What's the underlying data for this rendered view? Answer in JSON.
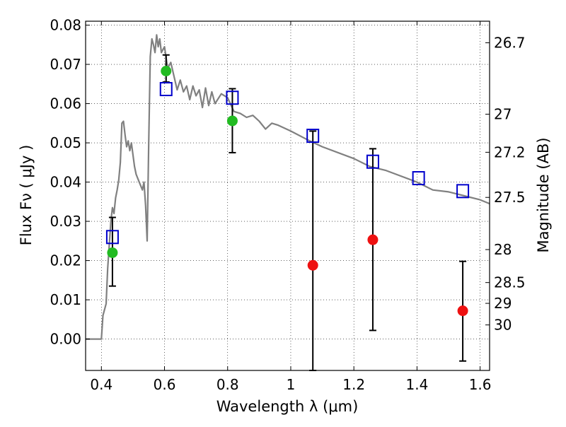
{
  "chart_data": {
    "type": "scatter",
    "xlabel": "Wavelength  λ (μm)",
    "ylabel": "Flux  Fν  ( μJy )",
    "ylabel_right": "Magnitude (AB)",
    "xlim": [
      0.35,
      1.63
    ],
    "ylim": [
      -0.008,
      0.081
    ],
    "xticks": [
      0.4,
      0.6,
      0.8,
      1.0,
      1.2,
      1.4,
      1.6
    ],
    "xtick_labels": [
      "0.4",
      "0.6",
      "0.8",
      "1",
      "1.2",
      "1.4",
      "1.6"
    ],
    "yticks": [
      0.0,
      0.01,
      0.02,
      0.03,
      0.04,
      0.05,
      0.06,
      0.07,
      0.08
    ],
    "ytick_labels": [
      "0.00",
      "0.01",
      "0.02",
      "0.03",
      "0.04",
      "0.05",
      "0.06",
      "0.07",
      "0.08"
    ],
    "right_ticks": [
      {
        "label": "26.7",
        "flux": 0.0755
      },
      {
        "label": "27",
        "flux": 0.0573
      },
      {
        "label": "27.2",
        "flux": 0.0476
      },
      {
        "label": "27.5",
        "flux": 0.0361
      },
      {
        "label": "28",
        "flux": 0.0228
      },
      {
        "label": "28.5",
        "flux": 0.0144
      },
      {
        "label": "29",
        "flux": 0.0091
      },
      {
        "label": "30",
        "flux": 0.0036
      }
    ],
    "grid": true,
    "colors": {
      "model": "#808080",
      "detection": "#22bb22",
      "upper_limit": "#ee1111",
      "model_box": "#0000cc",
      "errorbar": "#000000"
    },
    "series": [
      {
        "kind": "model_spectrum",
        "points": [
          [
            0.35,
            0.0
          ],
          [
            0.4,
            0.0
          ],
          [
            0.405,
            0.006
          ],
          [
            0.415,
            0.009
          ],
          [
            0.42,
            0.018
          ],
          [
            0.43,
            0.03
          ],
          [
            0.435,
            0.0335
          ],
          [
            0.44,
            0.032
          ],
          [
            0.445,
            0.036
          ],
          [
            0.45,
            0.038
          ],
          [
            0.455,
            0.0405
          ],
          [
            0.46,
            0.045
          ],
          [
            0.465,
            0.055
          ],
          [
            0.47,
            0.0555
          ],
          [
            0.475,
            0.052
          ],
          [
            0.48,
            0.049
          ],
          [
            0.485,
            0.0505
          ],
          [
            0.49,
            0.048
          ],
          [
            0.495,
            0.05
          ],
          [
            0.5,
            0.047
          ],
          [
            0.505,
            0.044
          ],
          [
            0.51,
            0.042
          ],
          [
            0.52,
            0.04
          ],
          [
            0.53,
            0.038
          ],
          [
            0.535,
            0.04
          ],
          [
            0.54,
            0.034
          ],
          [
            0.545,
            0.025
          ],
          [
            0.55,
            0.05
          ],
          [
            0.555,
            0.072
          ],
          [
            0.56,
            0.0765
          ],
          [
            0.565,
            0.075
          ],
          [
            0.57,
            0.073
          ],
          [
            0.575,
            0.0775
          ],
          [
            0.58,
            0.0745
          ],
          [
            0.585,
            0.0765
          ],
          [
            0.59,
            0.073
          ],
          [
            0.6,
            0.0745
          ],
          [
            0.61,
            0.069
          ],
          [
            0.62,
            0.0705
          ],
          [
            0.63,
            0.067
          ],
          [
            0.64,
            0.0635
          ],
          [
            0.65,
            0.066
          ],
          [
            0.66,
            0.063
          ],
          [
            0.67,
            0.0645
          ],
          [
            0.68,
            0.061
          ],
          [
            0.69,
            0.0645
          ],
          [
            0.7,
            0.062
          ],
          [
            0.71,
            0.0635
          ],
          [
            0.72,
            0.059
          ],
          [
            0.73,
            0.064
          ],
          [
            0.74,
            0.0595
          ],
          [
            0.75,
            0.063
          ],
          [
            0.76,
            0.06
          ],
          [
            0.78,
            0.0625
          ],
          [
            0.8,
            0.0615
          ],
          [
            0.82,
            0.058
          ],
          [
            0.84,
            0.0575
          ],
          [
            0.86,
            0.0565
          ],
          [
            0.88,
            0.057
          ],
          [
            0.9,
            0.0555
          ],
          [
            0.92,
            0.0535
          ],
          [
            0.94,
            0.055
          ],
          [
            0.96,
            0.0545
          ],
          [
            1.0,
            0.053
          ],
          [
            1.06,
            0.0505
          ],
          [
            1.1,
            0.049
          ],
          [
            1.2,
            0.046
          ],
          [
            1.25,
            0.044
          ],
          [
            1.3,
            0.043
          ],
          [
            1.4,
            0.04
          ],
          [
            1.45,
            0.038
          ],
          [
            1.5,
            0.0375
          ],
          [
            1.55,
            0.0365
          ],
          [
            1.6,
            0.0355
          ],
          [
            1.63,
            0.0345
          ]
        ]
      },
      {
        "kind": "detections",
        "points": [
          {
            "x": 0.435,
            "y": 0.022,
            "err_lo": 0.0135,
            "err_hi": 0.031
          },
          {
            "x": 0.605,
            "y": 0.0683,
            "err_lo": 0.0655,
            "err_hi": 0.0724
          },
          {
            "x": 0.815,
            "y": 0.0556,
            "err_lo": 0.0475,
            "err_hi": 0.0638
          }
        ]
      },
      {
        "kind": "upper_limits",
        "points": [
          {
            "x": 1.07,
            "y": 0.0188,
            "err_lo": -0.008,
            "err_hi": 0.053
          },
          {
            "x": 1.26,
            "y": 0.0253,
            "err_lo": 0.0022,
            "err_hi": 0.0485
          },
          {
            "x": 1.545,
            "y": 0.0072,
            "err_lo": -0.0056,
            "err_hi": 0.0198
          }
        ]
      },
      {
        "kind": "model_boxes",
        "points": [
          {
            "x": 0.435,
            "y": 0.026
          },
          {
            "x": 0.605,
            "y": 0.0637
          },
          {
            "x": 0.815,
            "y": 0.0615
          },
          {
            "x": 1.07,
            "y": 0.0518
          },
          {
            "x": 1.26,
            "y": 0.0452
          },
          {
            "x": 1.405,
            "y": 0.041
          },
          {
            "x": 1.545,
            "y": 0.0377
          }
        ]
      }
    ]
  }
}
